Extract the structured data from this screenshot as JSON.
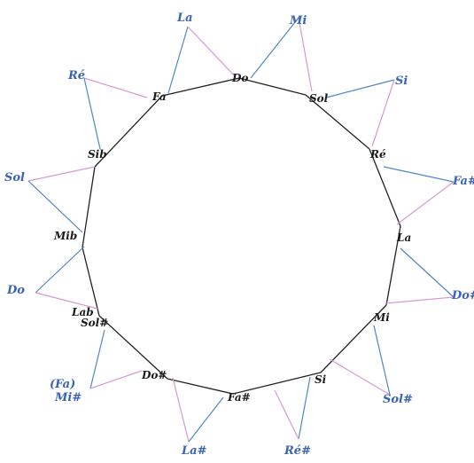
{
  "colors": {
    "outer_label": "#3a63b8",
    "inner_label": "#1a1a1a",
    "blue_edge": "#4f86c6",
    "pink_edge": "#d79ad0",
    "ring_edge": "#222222"
  },
  "diagram": {
    "nodes": [
      {
        "id": "do",
        "text": "Do"
      },
      {
        "id": "sol",
        "text": "Sol"
      },
      {
        "id": "re",
        "text": "Ré"
      },
      {
        "id": "la",
        "text": "La"
      },
      {
        "id": "mi",
        "text": "Mi"
      },
      {
        "id": "si",
        "text": "Si"
      },
      {
        "id": "fas",
        "text": "Fa#"
      },
      {
        "id": "dos",
        "text": "Do#"
      },
      {
        "id": "sols",
        "text": "Sol#"
      },
      {
        "id": "lab",
        "text": "Lab"
      },
      {
        "id": "mib",
        "text": "Mib"
      },
      {
        "id": "sib",
        "text": "Sib"
      },
      {
        "id": "fa",
        "text": "Fa"
      }
    ],
    "outer_labels": [
      {
        "id": "o-mi",
        "text": "Mi"
      },
      {
        "id": "o-si",
        "text": "Si"
      },
      {
        "id": "o-fas",
        "text": "Fa#"
      },
      {
        "id": "o-dos",
        "text": "Do#"
      },
      {
        "id": "o-sols",
        "text": "Sol#"
      },
      {
        "id": "o-res",
        "text": "Ré#"
      },
      {
        "id": "o-las",
        "text": "La#"
      },
      {
        "id": "o-mis",
        "text": "Mi#"
      },
      {
        "id": "o-fa-paren",
        "text": "(Fa)"
      },
      {
        "id": "o-do",
        "text": "Do"
      },
      {
        "id": "o-sol",
        "text": "Sol"
      },
      {
        "id": "o-re",
        "text": "Ré"
      },
      {
        "id": "o-la",
        "text": "La"
      }
    ]
  }
}
